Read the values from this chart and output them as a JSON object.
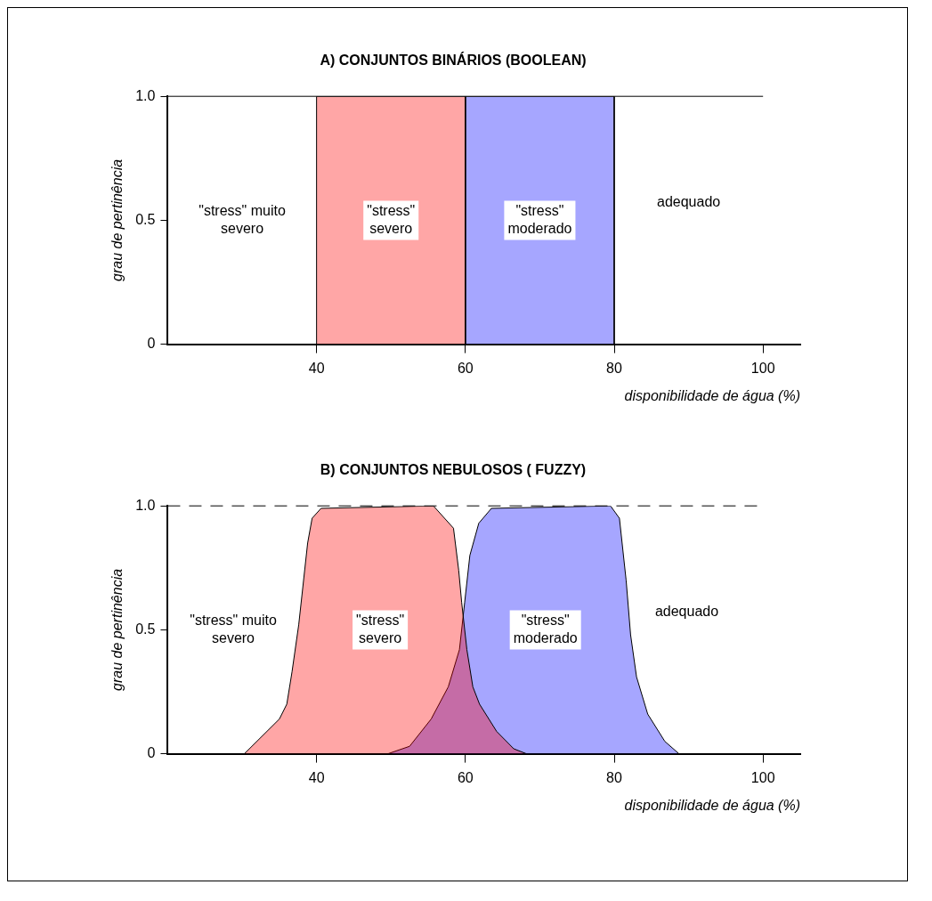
{
  "chart_data": [
    {
      "type": "area",
      "title": "A) CONJUNTOS BINÁRIOS (BOOLEAN)",
      "xlabel": "disponibilidade de água (%)",
      "ylabel": "grau de pertinência",
      "xlim": [
        20,
        105
      ],
      "xticks": [
        40,
        60,
        80,
        100
      ],
      "ylim": [
        0,
        1
      ],
      "yticks": [
        {
          "value": 0,
          "label": "0"
        },
        {
          "value": 0.5,
          "label": "0.5"
        },
        {
          "value": 1,
          "label": "1.0"
        }
      ],
      "grid": false,
      "legend": false,
      "series": [
        {
          "name": "\"stress\" severo",
          "color": "#ff0000",
          "x": [
            40,
            40,
            60,
            60
          ],
          "values": [
            0,
            1,
            1,
            0
          ]
        },
        {
          "name": "\"stress\" moderado",
          "color": "#0000ff",
          "x": [
            60,
            60,
            80,
            80
          ],
          "values": [
            0,
            1,
            1,
            0
          ]
        }
      ],
      "ref_lines": [
        {
          "axis": "y",
          "value": 1,
          "color": "#000000",
          "line_style": "solid"
        }
      ],
      "annotations": [
        "\"stress\" muito severo",
        "adequado"
      ]
    },
    {
      "type": "area",
      "title": "B) CONJUNTOS NEBULOSOS ( FUZZY)",
      "xlabel": "disponibilidade de água (%)",
      "ylabel": "grau de pertinência",
      "xlim": [
        20,
        105
      ],
      "xticks": [
        40,
        60,
        80,
        100
      ],
      "ylim": [
        0,
        1
      ],
      "yticks": [
        {
          "value": 0,
          "label": "0"
        },
        {
          "value": 0.5,
          "label": "0.5"
        },
        {
          "value": 1,
          "label": "1.0"
        }
      ],
      "grid": false,
      "legend": false,
      "series": [
        {
          "name": "\"stress\" severo",
          "color": "#ff0000",
          "x": [
            30.3,
            35,
            36,
            36.7,
            37.6,
            38.8,
            39.4,
            40.6,
            55.7,
            58.4,
            59.1,
            59.5,
            60.2,
            61,
            61.9,
            64.2,
            66.5,
            68.2
          ],
          "values": [
            0,
            0.14,
            0.2,
            0.33,
            0.52,
            0.85,
            0.95,
            0.99,
            1,
            0.91,
            0.74,
            0.61,
            0.42,
            0.27,
            0.2,
            0.09,
            0.02,
            0
          ]
        },
        {
          "name": "\"stress\" moderado",
          "color": "#0000ff",
          "x": [
            49.6,
            52.5,
            55.4,
            57.7,
            59.2,
            59.9,
            60.6,
            61.8,
            63.5,
            79.5,
            80.7,
            81.6,
            82.2,
            83,
            84.5,
            86.8,
            88.7
          ],
          "values": [
            0,
            0.03,
            0.14,
            0.27,
            0.42,
            0.61,
            0.8,
            0.93,
            0.99,
            1,
            0.95,
            0.7,
            0.48,
            0.31,
            0.16,
            0.05,
            0
          ]
        }
      ],
      "ref_lines": [
        {
          "axis": "y",
          "value": 1,
          "color": "#000000",
          "line_style": "dashed"
        }
      ],
      "annotations": [
        "\"stress\" muito severo",
        "adequado"
      ]
    }
  ]
}
